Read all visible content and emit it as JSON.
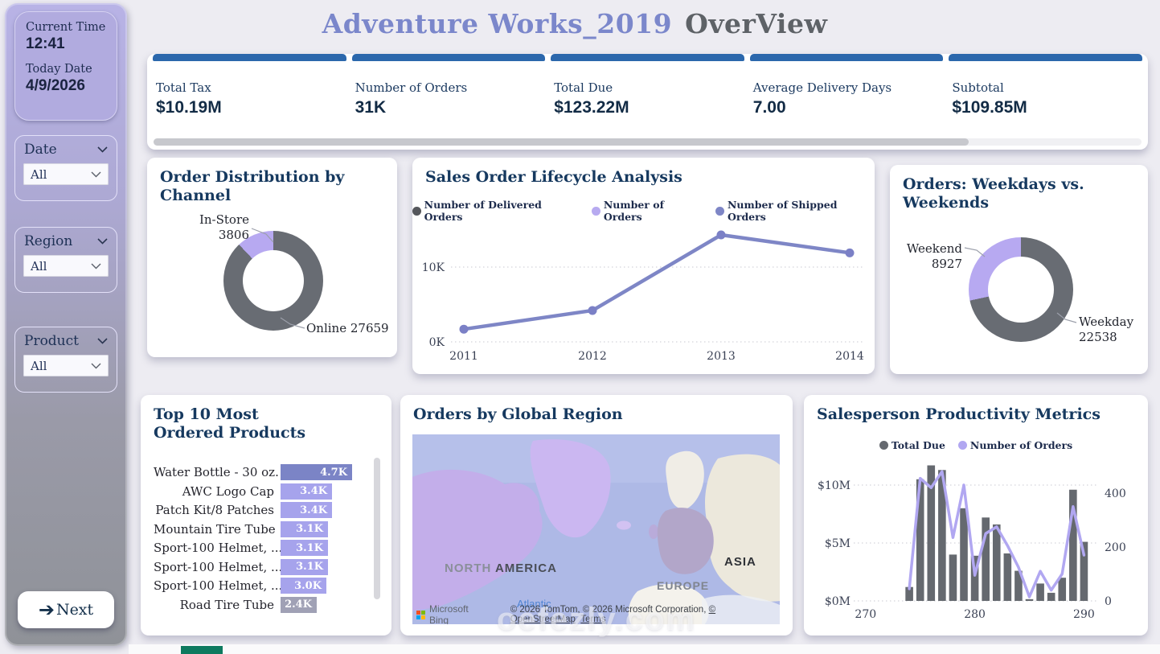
{
  "title": {
    "part1": "Adventure Works_2019",
    "part2": "OverView"
  },
  "sidebar": {
    "current_time_label": "Current Time",
    "current_time": "12:41",
    "today_date_label": "Today Date",
    "today_date": "4/9/2026",
    "filters": [
      {
        "label": "Date",
        "value": "All"
      },
      {
        "label": "Region",
        "value": "All"
      },
      {
        "label": "Product",
        "value": "All"
      }
    ],
    "next_label": "Next"
  },
  "kpis": [
    {
      "label": "Total Tax",
      "value": "$10.19M"
    },
    {
      "label": "Number of Orders",
      "value": "31K"
    },
    {
      "label": "Total Due",
      "value": "$123.22M"
    },
    {
      "label": "Average Delivery Days",
      "value": "7.00"
    },
    {
      "label": "Subtotal",
      "value": "$109.85M"
    }
  ],
  "chart_data": [
    {
      "type": "pie",
      "title": "Order Distribution by Channel",
      "categories": [
        "In-Store",
        "Online"
      ],
      "values": [
        3806,
        27659
      ],
      "colors": [
        "#b7a9f1",
        "#686c73"
      ],
      "legend": "callouts"
    },
    {
      "type": "line",
      "title": "Sales Order Lifecycle Analysis",
      "x": [
        "2011",
        "2012",
        "2013",
        "2014"
      ],
      "series": [
        {
          "name": "Number of Delivered Orders",
          "color": "#55575c",
          "values": [
            1700,
            4200,
            14300,
            11900
          ]
        },
        {
          "name": "Number of Orders",
          "color": "#b7aaf0",
          "values": [
            1700,
            4200,
            14300,
            11900
          ]
        },
        {
          "name": "Number of Shipped Orders",
          "color": "#7e86c6",
          "values": [
            1700,
            4200,
            14300,
            11900
          ]
        }
      ],
      "yticks": [
        {
          "label": "0K",
          "value": 0
        },
        {
          "label": "10K",
          "value": 10000
        }
      ],
      "ylim": [
        0,
        15500
      ],
      "grid": "dotted",
      "legend": "top"
    },
    {
      "type": "bar",
      "orientation": "horizontal",
      "title": "Top 10 Most Ordered Products",
      "categories": [
        "Water Bottle - 30 oz.",
        "AWC Logo Cap",
        "Patch Kit/8 Patches",
        "Mountain Tire Tube",
        "Sport-100 Helmet, ...",
        "Sport-100 Helmet, ...",
        "Sport-100 Helmet, ...",
        "Road Tire Tube"
      ],
      "values": [
        4700,
        3400,
        3400,
        3100,
        3100,
        3100,
        3000,
        2400
      ],
      "value_labels": [
        "4.7K",
        "3.4K",
        "3.4K",
        "3.1K",
        "3.1K",
        "3.1K",
        "3.0K",
        "2.4K"
      ],
      "bar_colors": [
        "#7b84c6",
        "#a6a3ec",
        "#a6a3ec",
        "#a6a3ec",
        "#a6a3ec",
        "#a6a3ec",
        "#a6a3ec",
        "#a0a1b5"
      ],
      "scrollable": true
    },
    {
      "type": "combo",
      "title": "Salesperson Productivity Metrics",
      "bar_series": {
        "name": "Total Due",
        "color": "#65696f",
        "ids": [
          274,
          275,
          276,
          277,
          278,
          279,
          280,
          281,
          282,
          283,
          284,
          285,
          286,
          287,
          288,
          289,
          290
        ],
        "values_millions": [
          1.2,
          10.5,
          11.7,
          11.3,
          4.0,
          8.0,
          3.9,
          7.2,
          6.6,
          4.1,
          2.6,
          0.15,
          1.5,
          0.7,
          2.0,
          9.6,
          5.1
        ]
      },
      "line_series": {
        "name": "Number of Orders",
        "color": "#b1a7f1",
        "values": [
          45,
          455,
          420,
          480,
          235,
          430,
          95,
          250,
          275,
          205,
          125,
          15,
          110,
          40,
          100,
          350,
          170
        ]
      },
      "left_ticks": [
        "$0M",
        "$5M",
        "$10M"
      ],
      "right_ticks": [
        "0",
        "200",
        "400"
      ],
      "x_ticks": [
        "270",
        "280",
        "290"
      ],
      "left_axis_range": [
        "$0M",
        "$10M"
      ],
      "right_axis_range": [
        0,
        400
      ]
    },
    {
      "type": "pie",
      "title": "Orders: Weekdays vs. Weekends",
      "categories": [
        "Weekend",
        "Weekday"
      ],
      "values": [
        8927,
        22538
      ],
      "colors": [
        "#b7a9f1",
        "#686c73"
      ],
      "legend": "callouts"
    }
  ],
  "map": {
    "title": "Orders by Global Region",
    "labels": {
      "na1": "NORTH ",
      "na2": "AMERICA",
      "europe": "EUROPE",
      "asia": "ASIA",
      "ocean": "Atlantic"
    },
    "provider": "Microsoft Bing",
    "copyright": "© 2026 TomTom, © 2026 Microsoft Corporation, ",
    "osm_link": "© OpenStreetMap",
    "terms_link": "Terms"
  },
  "watermark": "oefezly.com"
}
